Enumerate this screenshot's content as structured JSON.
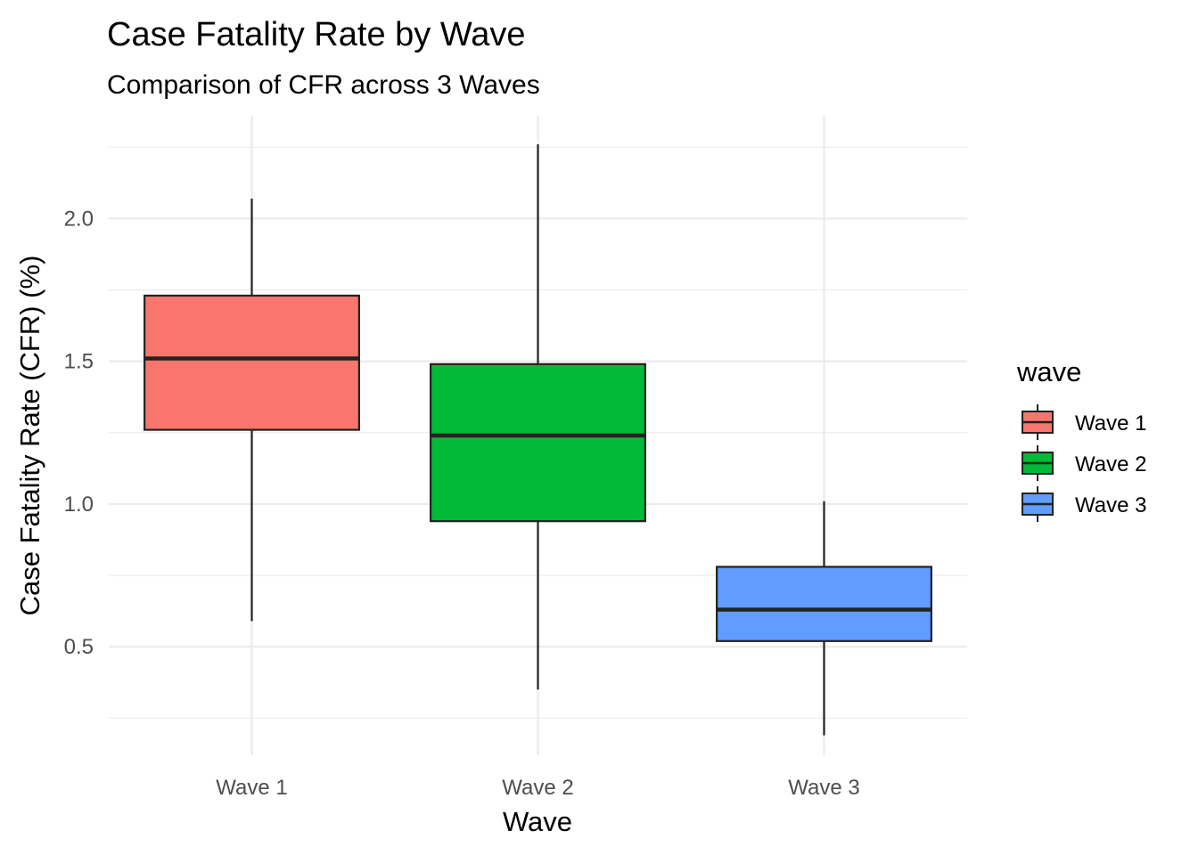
{
  "chart_data": {
    "type": "boxplot",
    "title": "Case Fatality Rate by Wave",
    "subtitle": "Comparison of CFR across 3 Waves",
    "xlabel": "Wave",
    "ylabel": "Case Fatality Rate (CFR) (%)",
    "categories": [
      "Wave 1",
      "Wave 2",
      "Wave 3"
    ],
    "ylim": [
      0.12,
      2.36
    ],
    "y_ticks": [
      0.5,
      1.0,
      1.5,
      2.0
    ],
    "y_tick_labels": [
      "0.5",
      "1.0",
      "1.5",
      "2.0"
    ],
    "y_minor_ticks": [
      0.25,
      0.75,
      1.25,
      1.75,
      2.25
    ],
    "grid": true,
    "legend": {
      "title": "wave",
      "position": "right",
      "entries": [
        "Wave 1",
        "Wave 2",
        "Wave 3"
      ]
    },
    "series": [
      {
        "category": "Wave 1",
        "min": 0.59,
        "q1": 1.26,
        "median": 1.51,
        "q3": 1.73,
        "max": 2.07,
        "color": "#F8766D"
      },
      {
        "category": "Wave 2",
        "min": 0.35,
        "q1": 0.94,
        "median": 1.24,
        "q3": 1.49,
        "max": 2.26,
        "color": "#00BA38"
      },
      {
        "category": "Wave 3",
        "min": 0.19,
        "q1": 0.52,
        "median": 0.63,
        "q3": 0.78,
        "max": 1.01,
        "color": "#619CFF"
      }
    ]
  }
}
